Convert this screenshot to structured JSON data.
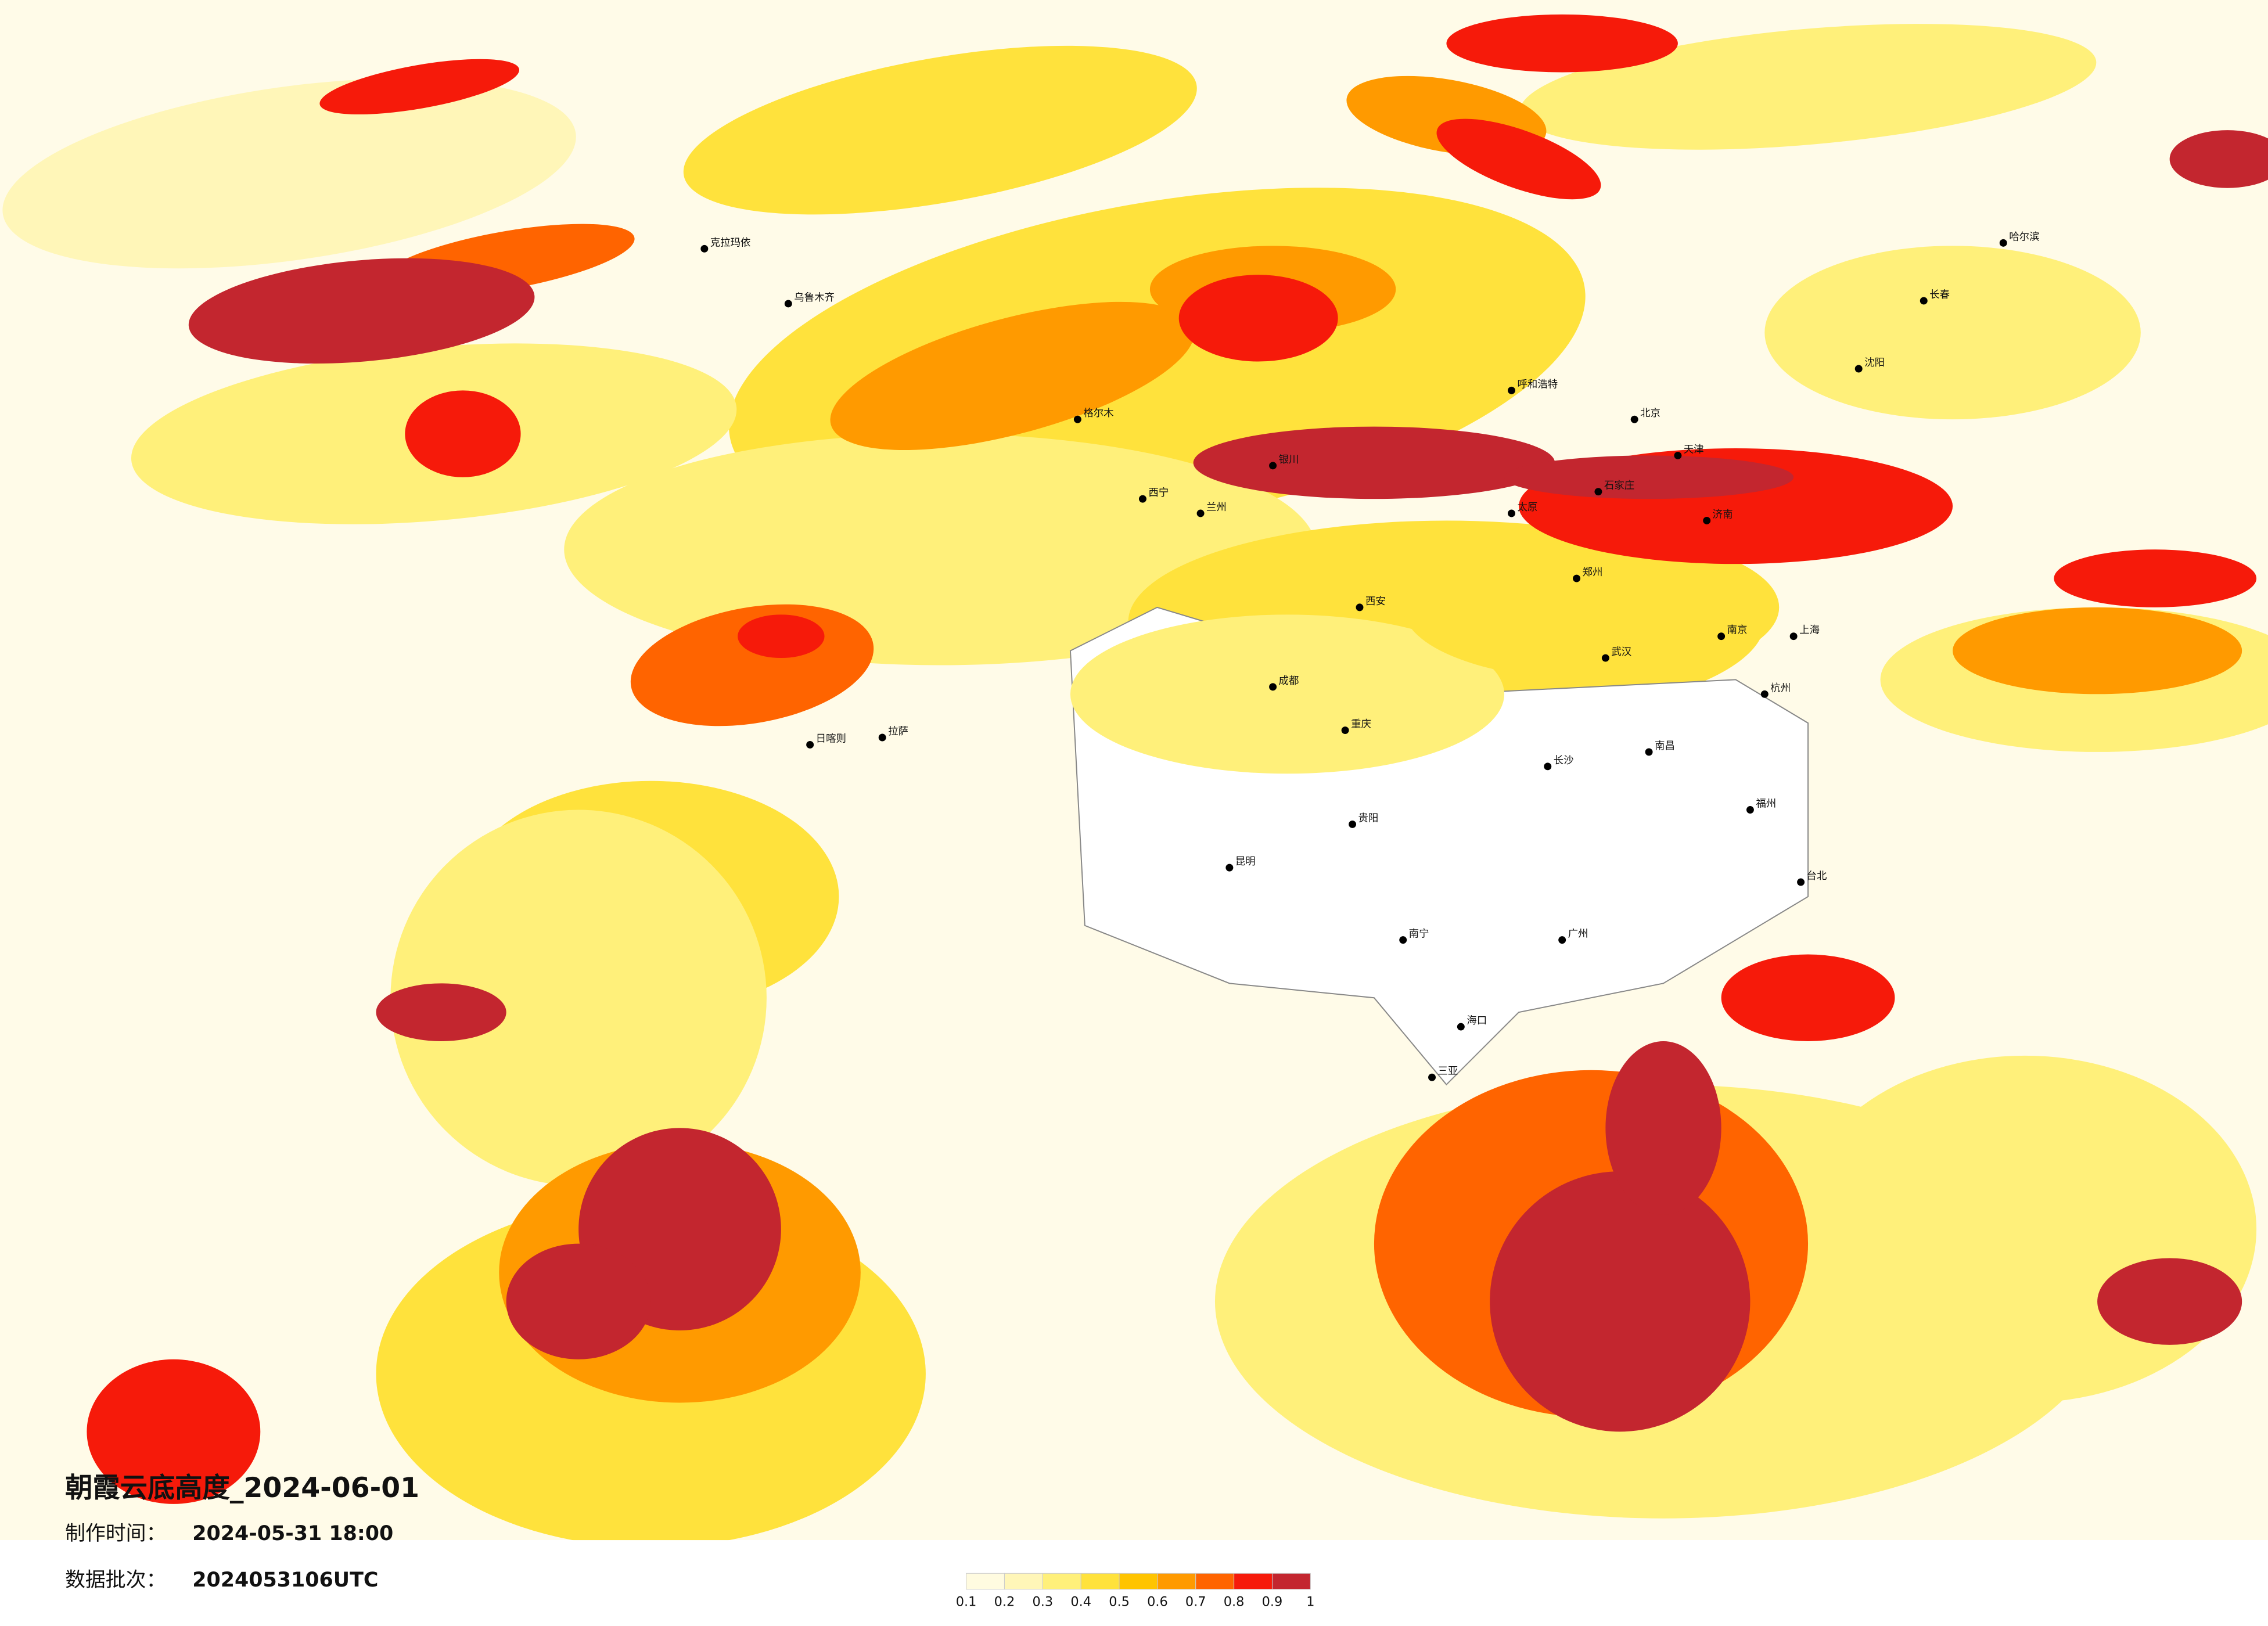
{
  "title": "朝霞云底高度_2024-06-01",
  "made_time": {
    "label": "制作时间：",
    "value": "2024-05-31 18:00"
  },
  "batch": {
    "label": "数据批次：",
    "value": "2024053106UTC"
  },
  "legend": {
    "colors": [
      "#fffbe0",
      "#fff6b8",
      "#fff07a",
      "#ffe23c",
      "#ffc400",
      "#ff9a00",
      "#ff6400",
      "#f61a0a",
      "#c3262f"
    ],
    "ticks": [
      0.1,
      0.2,
      0.3,
      0.4,
      0.5,
      0.6,
      0.7,
      0.8,
      0.9,
      1
    ]
  },
  "cities": [
    "克拉玛依",
    "乌鲁木齐",
    "哈尔滨",
    "长春",
    "沈阳",
    "呼和浩特",
    "北京",
    "天津",
    "石家庄",
    "太原",
    "济南",
    "郑州",
    "西安",
    "兰州",
    "西宁",
    "银川",
    "拉萨",
    "成都",
    "重庆",
    "武汉",
    "南京",
    "上海",
    "杭州",
    "长沙",
    "南昌",
    "福州",
    "贵阳",
    "昆明",
    "南宁",
    "广州",
    "海口",
    "台北",
    "三亚",
    "日喀则",
    "格尔木"
  ]
}
